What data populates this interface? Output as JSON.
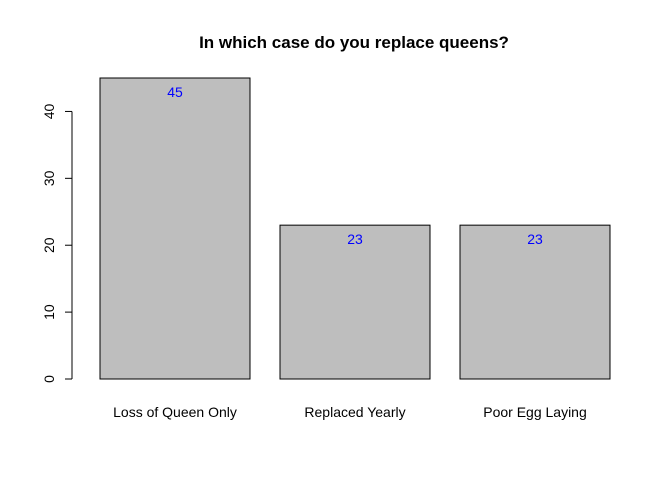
{
  "chart_data": {
    "type": "bar",
    "title": "In which case do you replace queens?",
    "xlabel": "",
    "ylabel": "",
    "categories": [
      "Loss of Queen Only",
      "Replaced Yearly",
      "Poor Egg Laying"
    ],
    "values": [
      45,
      23,
      23
    ],
    "data_labels": [
      "45",
      "23",
      "23"
    ],
    "yticks": [
      0,
      10,
      20,
      30,
      40
    ],
    "ylim": [
      0,
      45
    ],
    "grid": false,
    "legend": "none",
    "bar_color": "#bebebe",
    "bar_border_color": "#000000",
    "label_color": "#0000ff"
  }
}
